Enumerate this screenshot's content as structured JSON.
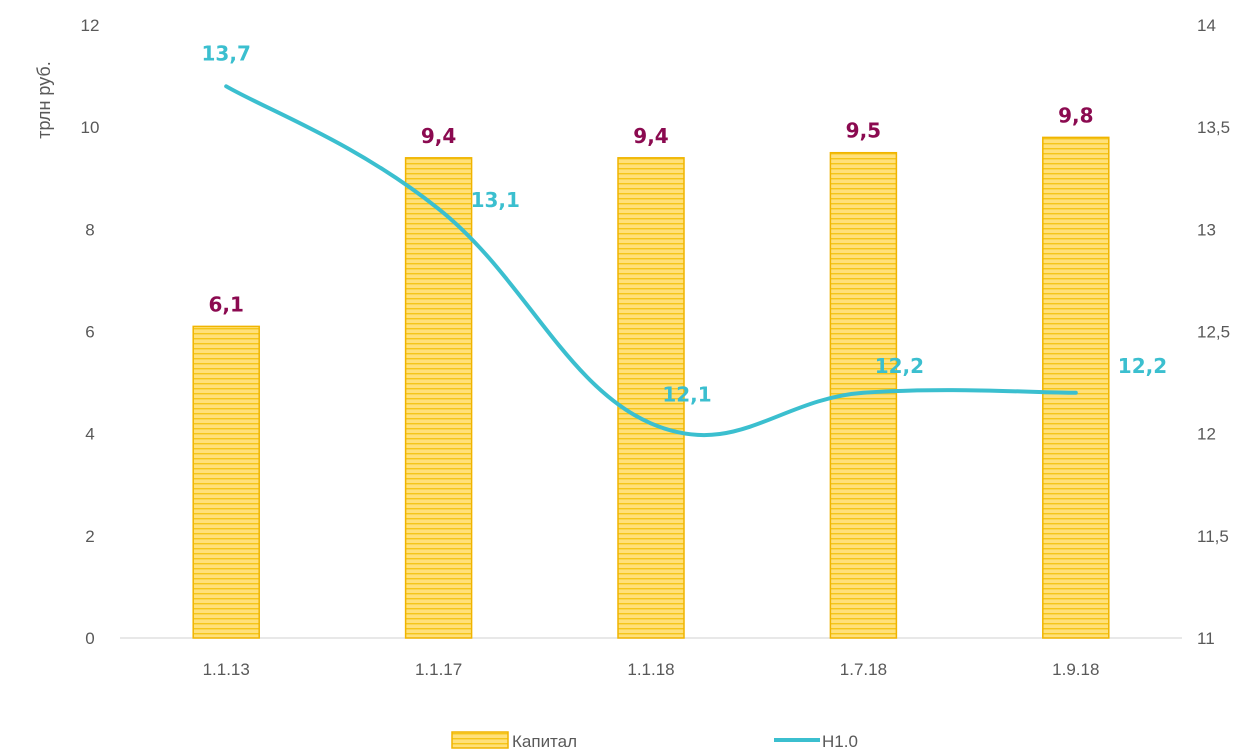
{
  "chart_data": {
    "type": "bar",
    "categories": [
      "1.1.13",
      "1.1.17",
      "1.1.18",
      "1.7.18",
      "1.9.18"
    ],
    "series": [
      {
        "name": "Капитал",
        "type": "bar",
        "axis": "left",
        "values": [
          6.1,
          9.4,
          9.4,
          9.5,
          9.8
        ],
        "labels": [
          "6,1",
          "9,4",
          "9,4",
          "9,5",
          "9,8"
        ]
      },
      {
        "name": "Н1.0",
        "type": "line",
        "axis": "right",
        "values": [
          13.7,
          13.1,
          12.05,
          12.2,
          12.2
        ],
        "labels": [
          "13,7",
          "13,1",
          "12,1",
          "12,2",
          "12,2"
        ]
      }
    ],
    "ylabel": "трлн руб.",
    "ylim": [
      0,
      12
    ],
    "yticks": [
      "0",
      "2",
      "4",
      "6",
      "8",
      "10",
      "12"
    ],
    "y2lim": [
      11,
      14
    ],
    "y2ticks": [
      "11",
      "11,5",
      "12",
      "12,5",
      "13",
      "13,5",
      "14"
    ],
    "grid": false,
    "legend": "bottom",
    "colors": {
      "bar_fill": "#FFE07A",
      "bar_stripe": "#F5C518",
      "bar_border": "#F0B400",
      "bar_label": "#8B0A50",
      "line": "#3BBFCF",
      "line_label": "#3BBFCF",
      "axis": "#D9D9D9",
      "text": "#595959"
    }
  }
}
